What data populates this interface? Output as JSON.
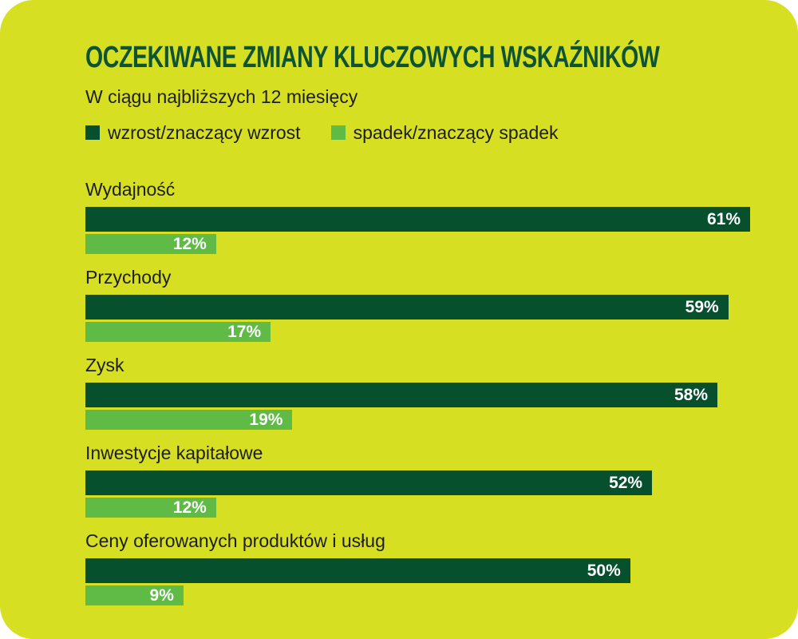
{
  "page": {
    "background": "#ffffff",
    "card_color": "#d7df22"
  },
  "header": {
    "title": "OCZEKIWANE ZMIANY KLUCZOWYCH WSKAŹNIKÓW",
    "subtitle": "W ciągu najbliższych 12 miesięcy",
    "title_color": "#0e5433"
  },
  "legend": [
    {
      "label": "wzrost/znaczący wzrost",
      "color": "#06502e"
    },
    {
      "label": "spadek/znaczący spadek",
      "color": "#5fba46"
    }
  ],
  "chart_data": {
    "type": "bar",
    "orientation": "horizontal",
    "unit": "%",
    "title": "OCZEKIWANE ZMIANY KLUCZOWYCH WSKAŹNIKÓW",
    "subtitle": "W ciągu najbliższych 12 miesięcy",
    "categories": [
      "Wydajność",
      "Przychody",
      "Zysk",
      "Inwestycje kapitałowe",
      "Ceny oferowanych produktów i usług"
    ],
    "series": [
      {
        "name": "wzrost/znaczący wzrost",
        "color": "#06502e",
        "values": [
          61,
          59,
          58,
          52,
          50
        ]
      },
      {
        "name": "spadek/znaczący spadek",
        "color": "#5fba46",
        "values": [
          12,
          17,
          19,
          12,
          9
        ]
      }
    ],
    "xlim": [
      0,
      61
    ],
    "grid": false,
    "legend_position": "top-left",
    "value_labels": "inside-end",
    "value_label_color": "#ffffff"
  }
}
